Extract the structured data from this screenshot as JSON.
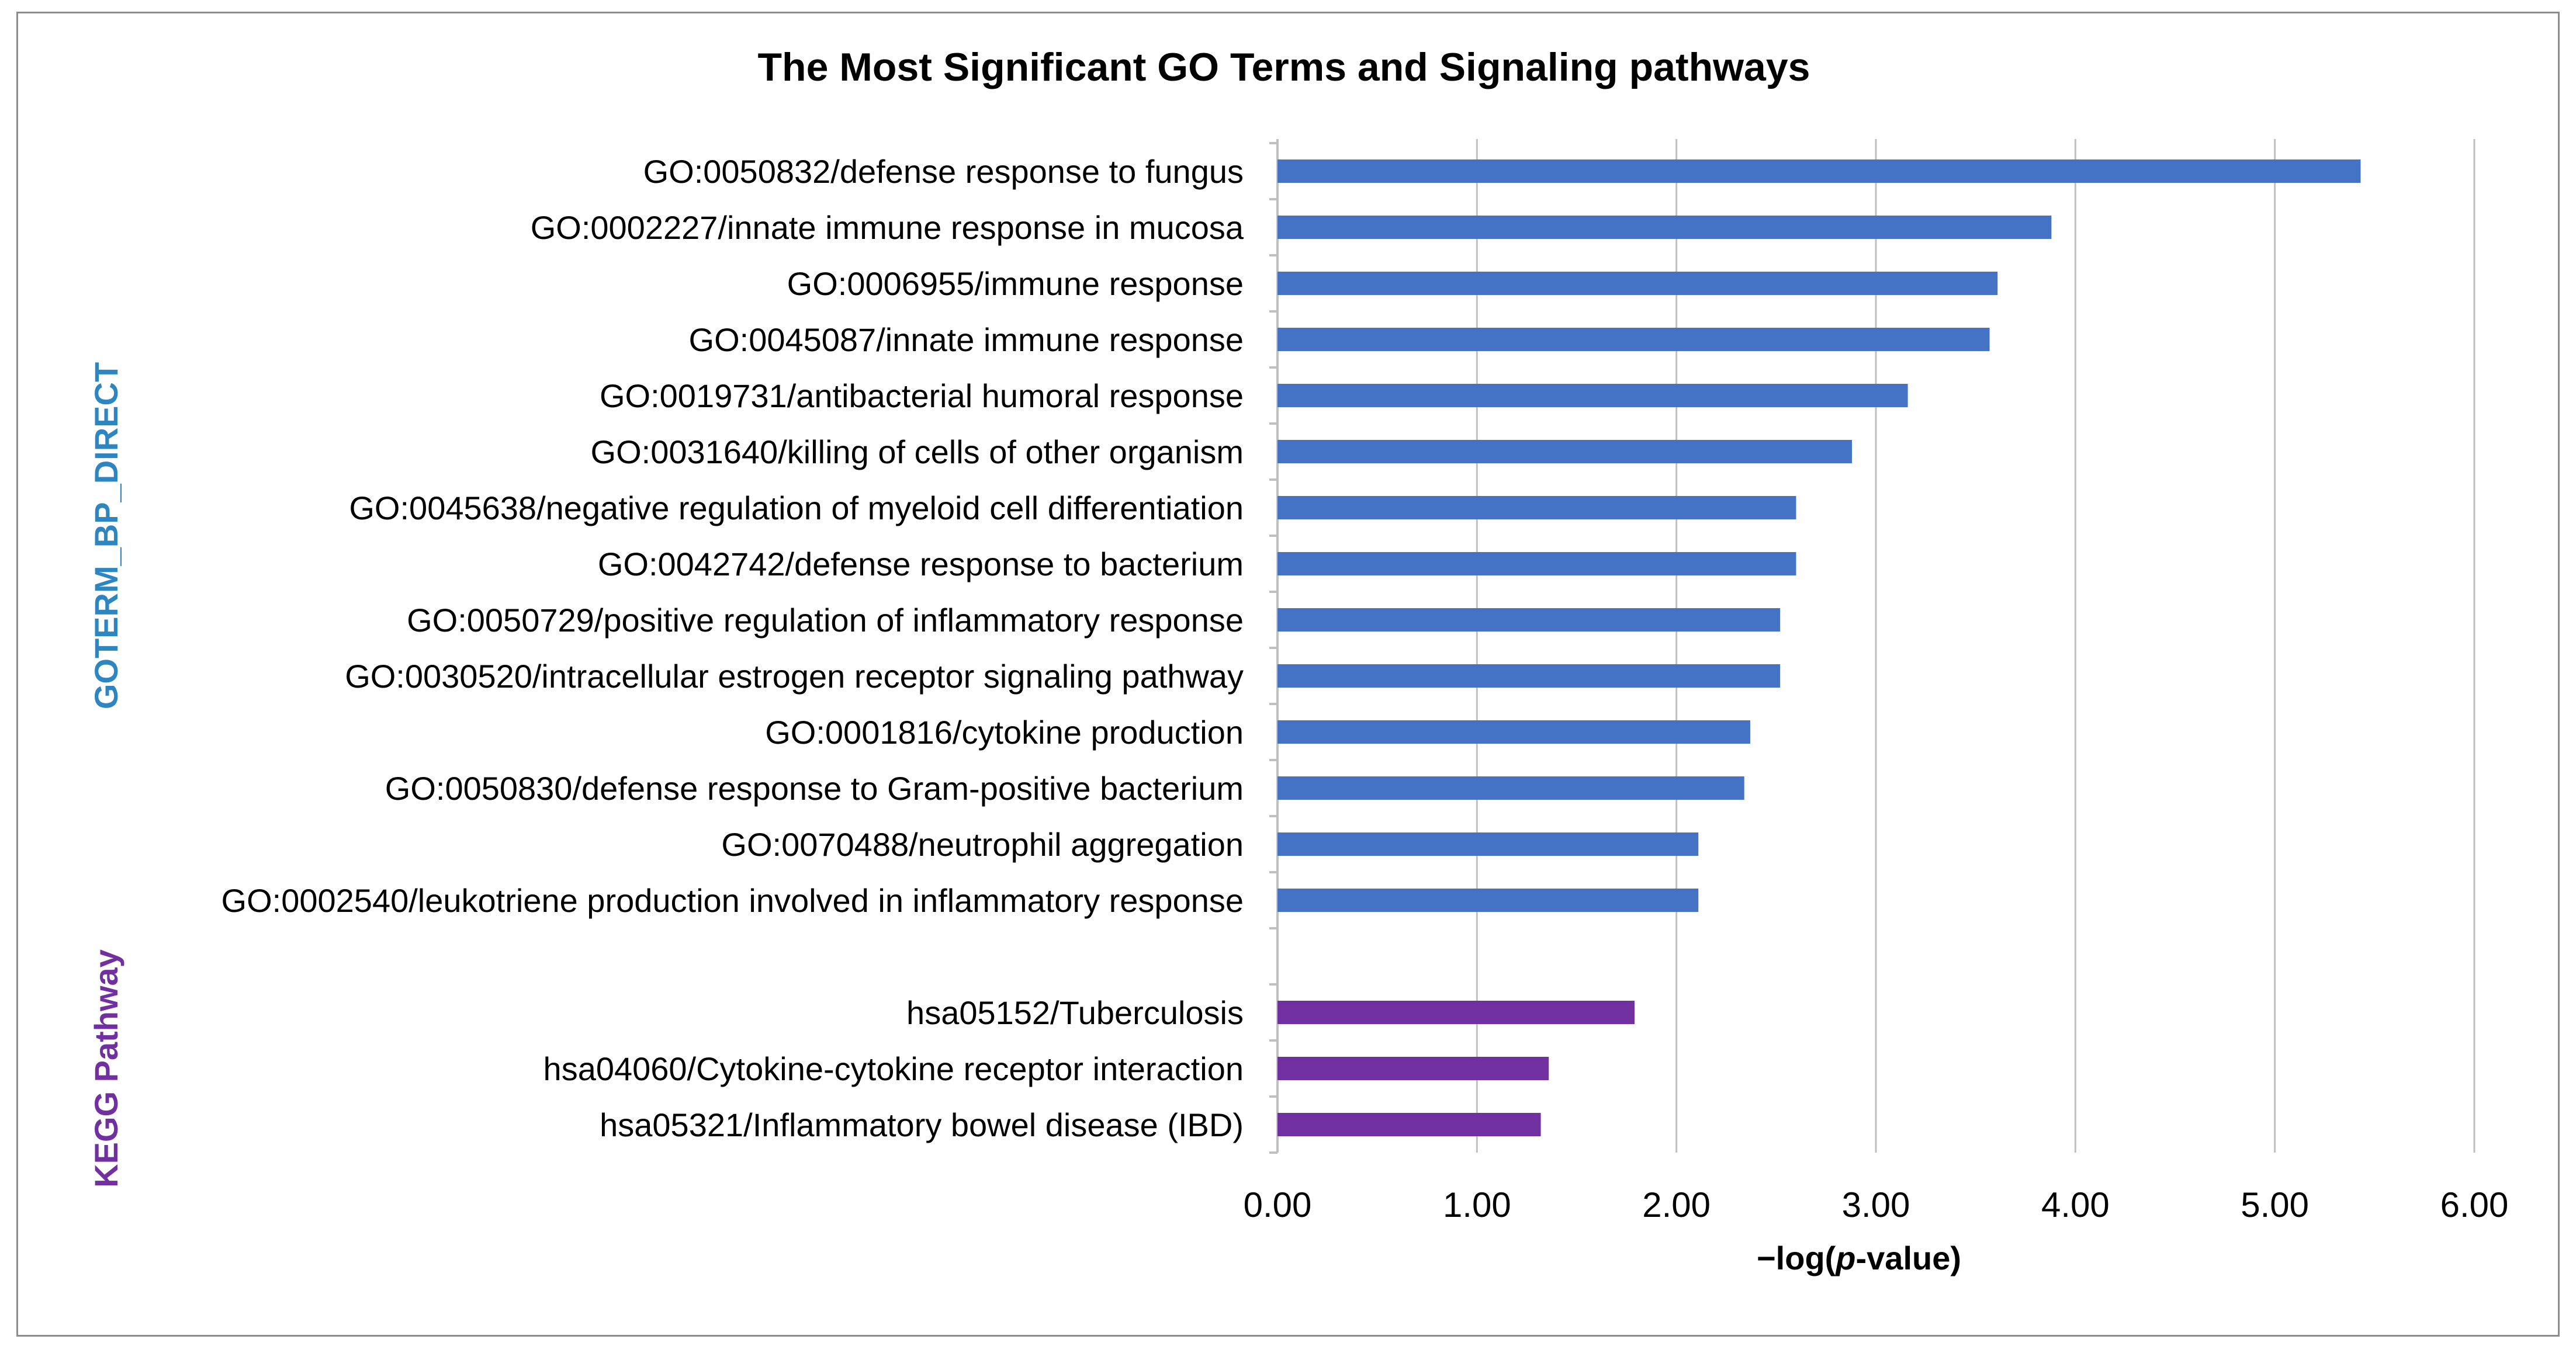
{
  "chart_data": {
    "type": "bar",
    "orientation": "horizontal",
    "title": "The Most Significant GO Terms and Signaling pathways",
    "xlabel_parts": [
      "−log(",
      "p",
      "-value)"
    ],
    "xlim": [
      0,
      6
    ],
    "xticks": [
      "0.00",
      "1.00",
      "2.00",
      "3.00",
      "4.00",
      "5.00",
      "6.00"
    ],
    "grid": true,
    "groups": [
      {
        "name": "GOTERM_BP_DIRECT",
        "color": "#4472c4",
        "label_color": "#2e86c1",
        "categories": [
          "GO:0050832/defense response to fungus",
          "GO:0002227/innate immune response in mucosa",
          "GO:0006955/immune response",
          "GO:0045087/innate immune response",
          "GO:0019731/antibacterial humoral response",
          "GO:0031640/killing of cells of other organism",
          "GO:0045638/negative regulation of myeloid cell differentiation",
          "GO:0042742/defense response to bacterium",
          "GO:0050729/positive regulation of inflammatory response",
          "GO:0030520/intracellular estrogen receptor signaling pathway",
          "GO:0001816/cytokine production",
          "GO:0050830/defense response to Gram-positive bacterium",
          "GO:0070488/neutrophil aggregation",
          "GO:0002540/leukotriene production involved in inflammatory response"
        ],
        "values": [
          5.43,
          3.88,
          3.61,
          3.57,
          3.16,
          2.88,
          2.6,
          2.6,
          2.52,
          2.52,
          2.37,
          2.34,
          2.11,
          2.11
        ]
      },
      {
        "name": "KEGG Pathway",
        "color": "#7030a0",
        "label_color": "#7030a0",
        "categories": [
          "hsa05152/Tuberculosis",
          "hsa04060/Cytokine-cytokine receptor interaction",
          "hsa05321/Inflammatory bowel disease (IBD)"
        ],
        "values": [
          1.79,
          1.36,
          1.32
        ]
      }
    ]
  }
}
